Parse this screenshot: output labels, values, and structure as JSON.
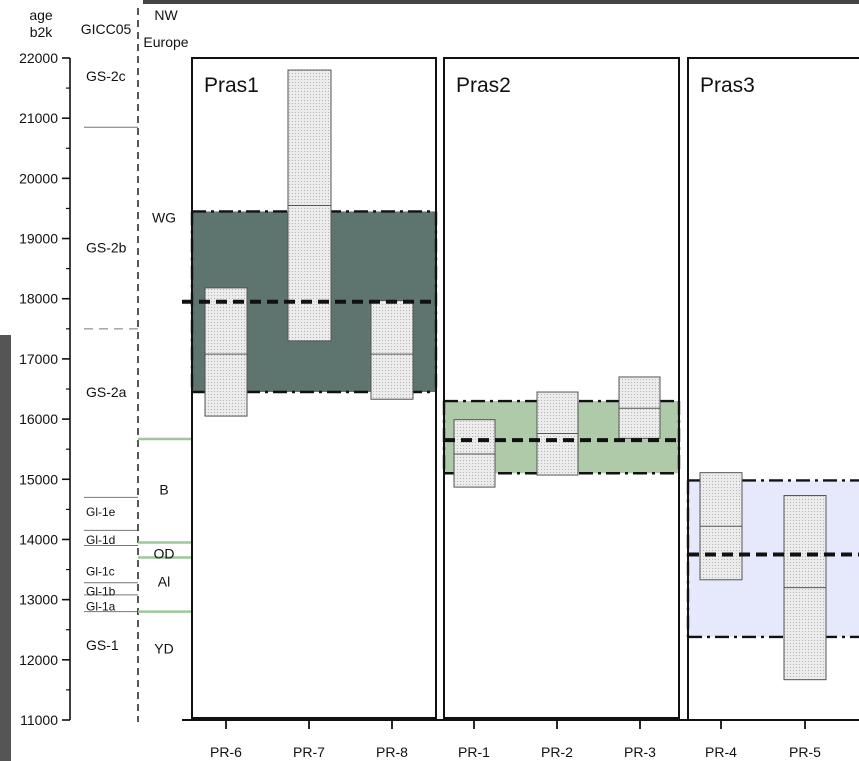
{
  "chart_data": {
    "type": "box",
    "y_axis": {
      "label_line1": "age",
      "label_line2": "b2k",
      "ylim": [
        11000,
        22000
      ],
      "ticks": [
        11000,
        12000,
        13000,
        14000,
        15000,
        16000,
        17000,
        18000,
        19000,
        20000,
        21000,
        22000
      ],
      "tick_labels": [
        "11000",
        "12000",
        "13000",
        "14000",
        "15000",
        "16000",
        "17000",
        "18000",
        "19000",
        "20000",
        "21000",
        "22000"
      ]
    },
    "gicc05": {
      "title": "GICC05",
      "stages": [
        {
          "label": "GS-2c",
          "value": 21700
        },
        {
          "label": "GS-2b",
          "value": 18850
        },
        {
          "label": "GS-2a",
          "value": 16450
        },
        {
          "label": "Gl-1e",
          "value": 14470
        },
        {
          "label": "Gl-1d",
          "value": 14010
        },
        {
          "label": "Gl-1c",
          "value": 13480
        },
        {
          "label": "Gl-1b",
          "value": 13150
        },
        {
          "label": "Gl-1a",
          "value": 12900
        },
        {
          "label": "GS-1",
          "value": 12250
        }
      ],
      "boundaries": [
        {
          "value": 20850,
          "style": "solid"
        },
        {
          "value": 17500,
          "style": "dashed"
        },
        {
          "value": 14700,
          "style": "solid"
        },
        {
          "value": 14150,
          "style": "solid"
        },
        {
          "value": 13900,
          "style": "solid"
        },
        {
          "value": 13280,
          "style": "solid"
        },
        {
          "value": 13080,
          "style": "solid"
        },
        {
          "value": 12800,
          "style": "solid"
        }
      ]
    },
    "nw_europe": {
      "title_line1": "NW",
      "title_line2": "Europe",
      "stages": [
        {
          "label": "WG",
          "value": 19350
        },
        {
          "label": "B",
          "value": 14830
        },
        {
          "label": "OD",
          "value": 13770
        },
        {
          "label": "Al",
          "value": 13300
        },
        {
          "label": "YD",
          "value": 12190
        }
      ],
      "boundaries": [
        15670,
        13950,
        13700,
        12800
      ],
      "boundary_color": "#9ec79a"
    },
    "panels": [
      {
        "name": "Pras1",
        "band": {
          "low": 16450,
          "high": 19450,
          "mean": 17950,
          "color": "#5e746e"
        },
        "boxes": [
          {
            "label": "PR-6",
            "low": 16050,
            "high": 18180,
            "median": 17080
          },
          {
            "label": "PR-7",
            "low": 17300,
            "high": 21800,
            "median": 19550
          },
          {
            "label": "PR-8",
            "low": 16330,
            "high": 17970,
            "median": 17080
          }
        ]
      },
      {
        "name": "Pras2",
        "band": {
          "low": 15100,
          "high": 16300,
          "mean": 15650,
          "color": "#aecaa9"
        },
        "boxes": [
          {
            "label": "PR-1",
            "low": 14870,
            "high": 15990,
            "median": 15420
          },
          {
            "label": "PR-2",
            "low": 15070,
            "high": 16450,
            "median": 15760
          },
          {
            "label": "PR-3",
            "low": 15680,
            "high": 16700,
            "median": 16180
          }
        ]
      },
      {
        "name": "Pras3",
        "band": {
          "low": 12380,
          "high": 14980,
          "mean": 13750,
          "color": "#e6e9fb"
        },
        "boxes": [
          {
            "label": "PR-4",
            "low": 13330,
            "high": 15110,
            "median": 14220
          },
          {
            "label": "PR-5",
            "low": 11670,
            "high": 14730,
            "median": 13200
          }
        ]
      }
    ],
    "colors": {
      "box_fill": "#ececec",
      "box_stroke": "#555555",
      "axis": "#111111",
      "page_left_bar": "#555555",
      "page_top_bar": "#444444"
    }
  }
}
